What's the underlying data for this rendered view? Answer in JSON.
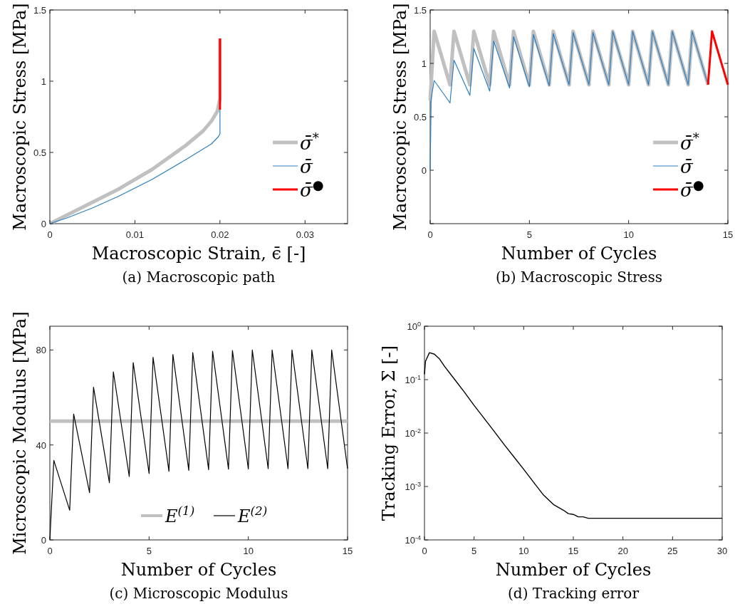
{
  "chart_data": [
    {
      "type": "line",
      "title": "(a) Macroscopic path",
      "xlabel": "Macroscopic Strain, ϵ̄ [-]",
      "ylabel": "Macroscopic Stress [MPa]",
      "xlim": [
        0,
        0.035
      ],
      "ylim": [
        0,
        1.5
      ],
      "xticks": [
        0,
        0.01,
        0.02,
        0.03
      ],
      "yticks": [
        0,
        0.5,
        1,
        1.5
      ],
      "legend": "right",
      "grid": false,
      "series": [
        {
          "name": "σ̄$^{*}$",
          "color": "#c0c0c0",
          "x": [
            0,
            0.004,
            0.008,
            0.012,
            0.016,
            0.018,
            0.019,
            0.0197,
            0.02,
            0.02
          ],
          "values": [
            0,
            0.12,
            0.24,
            0.38,
            0.55,
            0.65,
            0.72,
            0.79,
            0.88,
            1.3
          ]
        },
        {
          "name": "σ̄",
          "color": "#2e7fc0",
          "x": [
            0,
            0.002,
            0.005,
            0.008,
            0.012,
            0.016,
            0.019,
            0.0198,
            0.02,
            0.02
          ],
          "values": [
            0,
            0.04,
            0.11,
            0.19,
            0.31,
            0.45,
            0.56,
            0.61,
            0.63,
            0.8
          ]
        },
        {
          "name": "σ̄$^{●}$",
          "color": "#ff0000",
          "x": [
            0.02,
            0.02
          ],
          "values": [
            0.8,
            1.3
          ]
        }
      ]
    },
    {
      "type": "line",
      "title": "(b) Macroscopic Stress",
      "xlabel": "Number of Cycles",
      "ylabel": "Macroscopic Stress [MPa]",
      "xlim": [
        0,
        15
      ],
      "ylim": [
        -0.5,
        1.5
      ],
      "xticks": [
        0,
        5,
        10,
        15
      ],
      "yticks": [
        {
          "value": -0.5,
          "label": null
        },
        0,
        0.5,
        1,
        1.5
      ],
      "legend": "right",
      "grid": false,
      "series": [
        {
          "name": "σ̄$^{*}$",
          "color": "#c0c0c0",
          "x": [
            0,
            0.2,
            1,
            1.2,
            2,
            2.2,
            3,
            3.2,
            4,
            4.2,
            5,
            5.2,
            6,
            6.2,
            7,
            7.2,
            8,
            8.2,
            9,
            9.2,
            10,
            10.2,
            11,
            11.2,
            12,
            12.2,
            13,
            13.2,
            14
          ],
          "values": [
            0.65,
            1.3,
            0.8,
            1.3,
            0.8,
            1.3,
            0.8,
            1.3,
            0.8,
            1.3,
            0.8,
            1.3,
            0.8,
            1.3,
            0.8,
            1.3,
            0.8,
            1.3,
            0.8,
            1.3,
            0.8,
            1.3,
            0.8,
            1.3,
            0.8,
            1.3,
            0.8,
            1.3,
            0.8
          ]
        },
        {
          "name": "σ̄",
          "color": "#2e7fc0",
          "x": [
            0,
            0.05,
            0.2,
            1,
            1.2,
            2,
            2.2,
            3,
            3.2,
            4,
            4.2,
            5,
            5.2,
            6,
            6.2,
            7,
            7.2,
            8,
            8.2,
            9,
            9.2,
            10,
            10.2,
            11,
            11.2,
            12,
            12.2,
            13,
            13.2,
            14
          ],
          "values": [
            0,
            0.67,
            0.84,
            0.63,
            1.03,
            0.7,
            1.14,
            0.74,
            1.21,
            0.77,
            1.25,
            0.78,
            1.27,
            0.79,
            1.28,
            0.8,
            1.29,
            0.8,
            1.29,
            0.8,
            1.3,
            0.8,
            1.3,
            0.8,
            1.3,
            0.8,
            1.3,
            0.8,
            1.3,
            0.8
          ]
        },
        {
          "name": "σ̄$^{●}$",
          "color": "#ff0000",
          "x": [
            14,
            14.2,
            15
          ],
          "values": [
            0.8,
            1.3,
            0.8
          ]
        }
      ]
    },
    {
      "type": "line",
      "title": "(c) Microscopic Modulus",
      "xlabel": "Number of Cycles",
      "ylabel": "Microscopic Modulus [MPa]",
      "xlim": [
        0,
        15
      ],
      "ylim": [
        0,
        90
      ],
      "xticks": [
        0,
        5,
        10,
        15
      ],
      "yticks": [
        0,
        40,
        80
      ],
      "legend": "bottom",
      "grid": false,
      "series": [
        {
          "name": "E$^{(1)}$",
          "color": "#c0c0c0",
          "x": [
            0,
            15
          ],
          "values": [
            50,
            50
          ]
        },
        {
          "name": "E$^{(2)}$",
          "color": "#000000",
          "x": [
            0,
            0.2,
            1,
            1.2,
            2,
            2.2,
            3,
            3.2,
            4,
            4.2,
            5,
            5.2,
            6,
            6.2,
            7,
            7.2,
            8,
            8.2,
            9,
            9.2,
            10,
            10.2,
            11,
            11.2,
            12,
            12.2,
            13,
            13.2,
            14,
            14.2,
            15
          ],
          "values": [
            0,
            33.5,
            12.5,
            53,
            19.9,
            64.3,
            24.1,
            70.8,
            26.7,
            74.7,
            28,
            76.9,
            28.9,
            78.1,
            29.3,
            78.9,
            29.6,
            79.5,
            29.8,
            79.8,
            29.9,
            80,
            30,
            80,
            30,
            80,
            30,
            80,
            30,
            80,
            30
          ]
        }
      ]
    },
    {
      "type": "line",
      "title": "(d) Tracking error",
      "xlabel": "Number of Cycles",
      "ylabel": "Tracking Error, Σ [-]",
      "log": "y",
      "xlim": [
        0,
        30
      ],
      "ylim": [
        0.0001,
        1
      ],
      "xticks": [
        0,
        5,
        10,
        15,
        20,
        25,
        30
      ],
      "yticks": [
        {
          "value": 0.0001,
          "label": "10$^{-4}$"
        },
        {
          "value": 0.001,
          "label": "10$^{-3}$"
        },
        {
          "value": 0.01,
          "label": "10$^{-2}$"
        },
        {
          "value": 0.1,
          "label": "10$^{-1}$"
        },
        {
          "value": 1,
          "label": "10$^{0}$"
        }
      ],
      "grid": false,
      "series": [
        {
          "color": "#000000",
          "x": [
            0,
            0.1,
            0.5,
            1,
            1.5,
            2,
            3,
            4,
            5,
            6,
            7,
            8,
            9,
            10,
            11,
            12,
            13,
            14,
            14.5,
            15,
            15.5,
            16,
            16.5,
            17,
            18,
            20,
            25,
            30
          ],
          "values": [
            0.126,
            0.22,
            0.32,
            0.3,
            0.246,
            0.18,
            0.103,
            0.059,
            0.033,
            0.019,
            0.0109,
            0.0062,
            0.0036,
            0.0021,
            0.0012,
            0.00069,
            0.00046,
            0.00036,
            0.00031,
            0.0003,
            0.00027,
            0.00027,
            0.000254,
            0.000254,
            0.000254,
            0.000254,
            0.000254,
            0.000254
          ]
        }
      ]
    }
  ]
}
